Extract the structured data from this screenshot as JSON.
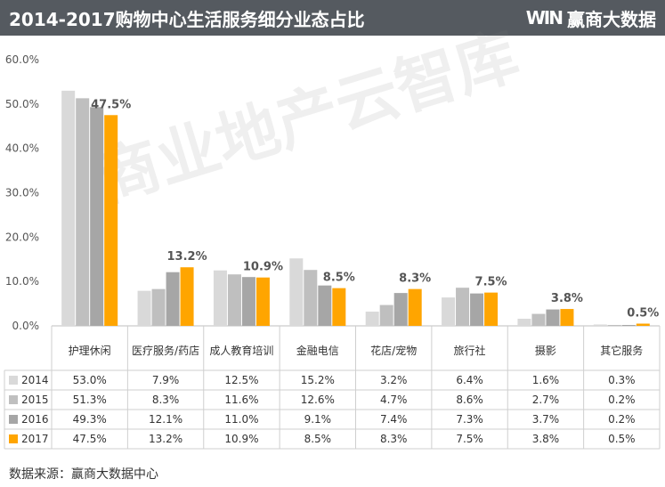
{
  "header": {
    "title": "2014-2017购物中心生活服务细分业态占比",
    "brand_logo": "WIN",
    "brand_name": "赢商大数据"
  },
  "watermark": "商业地产云智库",
  "footer": "数据来源：赢商大数据中心",
  "colors": {
    "header_bg": "#555a60",
    "series": [
      "#d9d9d9",
      "#bfbfbf",
      "#a6a6a6",
      "#ffa500"
    ]
  },
  "chart_data": {
    "type": "bar",
    "title": "2014-2017购物中心生活服务细分业态占比",
    "categories": [
      "护理休闲",
      "医疗服务/药店",
      "成人教育培训",
      "金融电信",
      "花店/宠物",
      "旅行社",
      "摄影",
      "其它服务"
    ],
    "series": [
      {
        "name": "2014",
        "values": [
          53.0,
          7.9,
          12.5,
          15.2,
          3.2,
          6.4,
          1.6,
          0.3
        ]
      },
      {
        "name": "2015",
        "values": [
          51.3,
          8.3,
          11.6,
          12.6,
          4.7,
          8.6,
          2.7,
          0.2
        ]
      },
      {
        "name": "2016",
        "values": [
          49.3,
          12.1,
          11.0,
          9.1,
          7.4,
          7.3,
          3.7,
          0.2
        ]
      },
      {
        "name": "2017",
        "values": [
          47.5,
          13.2,
          10.9,
          8.5,
          8.3,
          7.5,
          3.8,
          0.5
        ]
      }
    ],
    "value_labels_series": "2017",
    "value_labels": [
      "47.5%",
      "13.2%",
      "10.9%",
      "8.5%",
      "8.3%",
      "7.5%",
      "3.8%",
      "0.5%"
    ],
    "y_ticks": [
      "0.0%",
      "10.0%",
      "20.0%",
      "30.0%",
      "40.0%",
      "50.0%",
      "60.0%"
    ],
    "ylim": [
      0,
      60
    ],
    "table": {
      "rows": [
        {
          "label": "2014",
          "cells": [
            "53.0%",
            "7.9%",
            "12.5%",
            "15.2%",
            "3.2%",
            "6.4%",
            "1.6%",
            "0.3%"
          ]
        },
        {
          "label": "2015",
          "cells": [
            "51.3%",
            "8.3%",
            "11.6%",
            "12.6%",
            "4.7%",
            "8.6%",
            "2.7%",
            "0.2%"
          ]
        },
        {
          "label": "2016",
          "cells": [
            "49.3%",
            "12.1%",
            "11.0%",
            "9.1%",
            "7.4%",
            "7.3%",
            "3.7%",
            "0.2%"
          ]
        },
        {
          "label": "2017",
          "cells": [
            "47.5%",
            "13.2%",
            "10.9%",
            "8.5%",
            "8.3%",
            "7.5%",
            "3.8%",
            "0.5%"
          ]
        }
      ]
    },
    "grid": false,
    "legend": "data-table"
  }
}
